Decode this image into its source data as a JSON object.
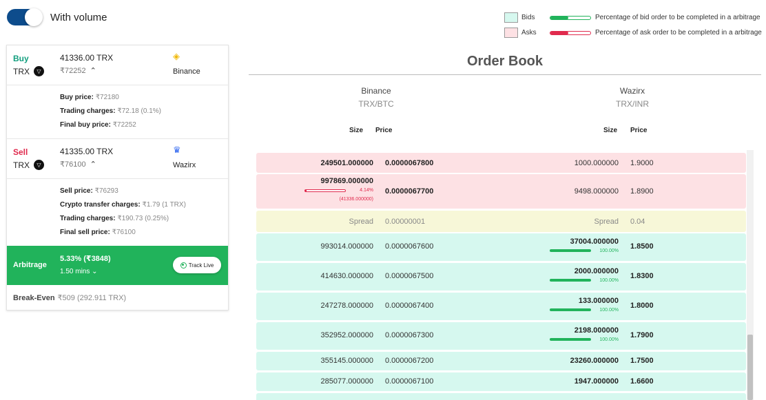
{
  "toggle": {
    "label": "With volume",
    "on": true
  },
  "legend": {
    "bids_label": "Bids",
    "asks_label": "Asks",
    "bid_desc": "Percentage of bid order to be completed in a arbitrage",
    "ask_desc": "Percentage of ask order to be completed in a arbitrage",
    "bid_color": "#21b35b",
    "ask_color": "#e02a4d"
  },
  "buy": {
    "label": "Buy",
    "coin": "TRX",
    "amount": "41336.00 TRX",
    "inr": "₹72252",
    "exchange": "Binance",
    "details": [
      {
        "k": "Buy price:",
        "v": "₹72180"
      },
      {
        "k": "Trading charges:",
        "v": "₹72.18 (0.1%)"
      },
      {
        "k": "Final buy price:",
        "v": "₹72252"
      }
    ]
  },
  "sell": {
    "label": "Sell",
    "coin": "TRX",
    "amount": "41335.00 TRX",
    "inr": "₹76100",
    "exchange": "Wazirx",
    "details": [
      {
        "k": "Sell price:",
        "v": "₹76293"
      },
      {
        "k": "Crypto transfer charges:",
        "v": "₹1.79 (1 TRX)"
      },
      {
        "k": "Trading charges:",
        "v": "₹190.73 (0.25%)"
      },
      {
        "k": "Final sell price:",
        "v": "₹76100"
      }
    ]
  },
  "arbitrage": {
    "label": "Arbitrage",
    "pct": "5.33% (₹3848)",
    "mins": "1.50 mins",
    "track_label": "Track Live"
  },
  "break_even": {
    "label": "Break-Even",
    "value": "₹509 (292.911 TRX)"
  },
  "order_book": {
    "title": "Order Book",
    "left": {
      "exchange": "Binance",
      "pair": "TRX/BTC"
    },
    "right": {
      "exchange": "Wazirx",
      "pair": "TRX/INR"
    },
    "size_label": "Size",
    "price_label": "Price",
    "rows": [
      {
        "type": "ask",
        "l_size": "249501.000000",
        "l_price": "0.0000067800",
        "r_size": "1000.000000",
        "r_price": "1.9000"
      },
      {
        "type": "ask",
        "l_size": "997869.000000",
        "l_price": "0.0000067700",
        "r_size": "9498.000000",
        "r_price": "1.8900",
        "l_pct": "4.14%",
        "l_pct_value": 0.0414,
        "l_sub": "(41336.000000)"
      },
      {
        "type": "spread",
        "l_size": "Spread",
        "l_price": "0.00000001",
        "r_size": "Spread",
        "r_price": "0.04"
      },
      {
        "type": "bid",
        "l_size": "993014.000000",
        "l_price": "0.0000067600",
        "r_size": "37004.000000",
        "r_price": "1.8500",
        "r_pct": "100.00%",
        "r_pct_value": 1.0
      },
      {
        "type": "bid",
        "l_size": "414630.000000",
        "l_price": "0.0000067500",
        "r_size": "2000.000000",
        "r_price": "1.8300",
        "r_pct": "100.00%",
        "r_pct_value": 1.0
      },
      {
        "type": "bid",
        "l_size": "247278.000000",
        "l_price": "0.0000067400",
        "r_size": "133.000000",
        "r_price": "1.8000",
        "r_pct": "100.00%",
        "r_pct_value": 1.0
      },
      {
        "type": "bid",
        "l_size": "352952.000000",
        "l_price": "0.0000067300",
        "r_size": "2198.000000",
        "r_price": "1.7900",
        "r_pct": "100.00%",
        "r_pct_value": 1.0
      },
      {
        "type": "bid",
        "l_size": "355145.000000",
        "l_price": "0.0000067200",
        "r_size": "23260.000000",
        "r_price": "1.7500"
      },
      {
        "type": "bid",
        "l_size": "285077.000000",
        "l_price": "0.0000067100",
        "r_size": "1947.000000",
        "r_price": "1.6600"
      }
    ]
  }
}
